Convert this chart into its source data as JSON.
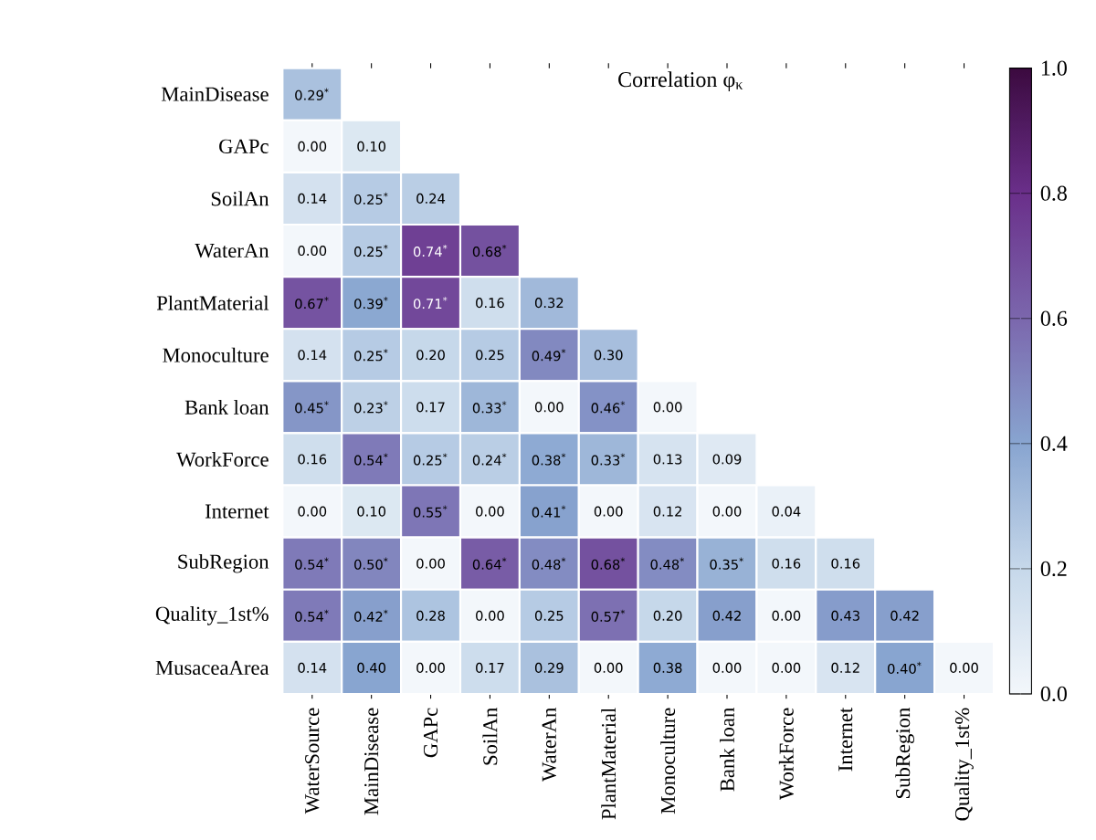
{
  "chart_data": {
    "type": "heatmap",
    "title": "Correlation φ$_{κ}$",
    "categories": [
      "WaterSource",
      "MainDisease",
      "GAPc",
      "SoilAn",
      "WaterAn",
      "PlantMaterial",
      "Monoculture",
      "Bank loan",
      "WorkForce",
      "Internet",
      "SubRegion",
      "Quality_1st%"
    ],
    "y_categories": [
      "MainDisease",
      "GAPc",
      "SoilAn",
      "WaterAn",
      "PlantMaterial",
      "Monoculture",
      "Bank loan",
      "WorkForce",
      "Internet",
      "SubRegion",
      "Quality_1st%",
      "MusaceaArea"
    ],
    "cells": [
      [
        0.29,
        null,
        null,
        null,
        null,
        null,
        null,
        null,
        null,
        null,
        null,
        null
      ],
      [
        0.0,
        0.1,
        null,
        null,
        null,
        null,
        null,
        null,
        null,
        null,
        null,
        null
      ],
      [
        0.14,
        0.25,
        0.24,
        null,
        null,
        null,
        null,
        null,
        null,
        null,
        null,
        null
      ],
      [
        0.0,
        0.25,
        0.74,
        0.68,
        null,
        null,
        null,
        null,
        null,
        null,
        null,
        null
      ],
      [
        0.67,
        0.39,
        0.71,
        0.16,
        0.32,
        null,
        null,
        null,
        null,
        null,
        null,
        null
      ],
      [
        0.14,
        0.25,
        0.2,
        0.25,
        0.49,
        0.3,
        null,
        null,
        null,
        null,
        null,
        null
      ],
      [
        0.45,
        0.23,
        0.17,
        0.33,
        0.0,
        0.46,
        0.0,
        null,
        null,
        null,
        null,
        null
      ],
      [
        0.16,
        0.54,
        0.25,
        0.24,
        0.38,
        0.33,
        0.13,
        0.09,
        null,
        null,
        null,
        null
      ],
      [
        0.0,
        0.1,
        0.55,
        0.0,
        0.41,
        0.0,
        0.12,
        0.0,
        0.04,
        null,
        null,
        null
      ],
      [
        0.54,
        0.5,
        0.0,
        0.64,
        0.48,
        0.68,
        0.48,
        0.35,
        0.16,
        0.16,
        null,
        null
      ],
      [
        0.54,
        0.42,
        0.28,
        0.0,
        0.25,
        0.57,
        0.2,
        0.42,
        0.0,
        0.43,
        0.42,
        null
      ],
      [
        0.14,
        0.4,
        0.0,
        0.17,
        0.29,
        0.0,
        0.38,
        0.0,
        0.0,
        0.12,
        0.4,
        0.0
      ]
    ],
    "cell_labels": [
      [
        "0.29$^{*}$",
        null,
        null,
        null,
        null,
        null,
        null,
        null,
        null,
        null,
        null,
        null
      ],
      [
        "0.00",
        "0.10",
        null,
        null,
        null,
        null,
        null,
        null,
        null,
        null,
        null,
        null
      ],
      [
        "0.14",
        "0.25$^{*}$",
        "0.24",
        null,
        null,
        null,
        null,
        null,
        null,
        null,
        null,
        null
      ],
      [
        "0.00",
        "0.25$^{*}$",
        "0.74$^{*}$",
        "0.68$^{*}$",
        null,
        null,
        null,
        null,
        null,
        null,
        null,
        null
      ],
      [
        "0.67$^{*}$",
        "0.39$^{*}$",
        "0.71$^{*}$",
        "0.16",
        "0.32",
        null,
        null,
        null,
        null,
        null,
        null,
        null
      ],
      [
        "0.14",
        "0.25$^{*}$",
        "0.20",
        "0.25",
        "0.49$^{*}$",
        "0.30",
        null,
        null,
        null,
        null,
        null,
        null
      ],
      [
        "0.45$^{*}$",
        "0.23$^{*}$",
        "0.17",
        "0.33$^{*}$",
        "0.00",
        "0.46$^{*}$",
        "0.00",
        null,
        null,
        null,
        null,
        null
      ],
      [
        "0.16",
        "0.54$^{*}$",
        "0.25$^{*}$",
        "0.24$^{*}$",
        "0.38$^{*}$",
        "0.33$^{*}$",
        "0.13",
        "0.09",
        null,
        null,
        null,
        null
      ],
      [
        "0.00",
        "0.10",
        "0.55$^{*}$",
        "0.00",
        "0.41$^{*}$",
        "0.00",
        "0.12",
        "0.00",
        "0.04",
        null,
        null,
        null
      ],
      [
        "0.54$^{*}$",
        "0.50$^{*}$",
        "0.00",
        "0.64$^{*}$",
        "0.48$^{*}$",
        "0.68$^{*}$",
        "0.48$^{*}$",
        "0.35$^{*}$",
        "0.16",
        "0.16",
        null,
        null
      ],
      [
        "0.54$^{*}$",
        "0.42$^{*}$",
        "0.28",
        "0.00",
        "0.25",
        "0.57$^{*}$",
        "0.20",
        "0.42",
        "0.00",
        "0.43",
        "0.42",
        null
      ],
      [
        "0.14",
        "0.40",
        "0.00",
        "0.17",
        "0.29",
        "0.00",
        "0.38",
        "0.00",
        "0.00",
        "0.12",
        "0.40$^{*}$",
        "0.00"
      ]
    ],
    "clim": [
      0,
      1
    ],
    "cticks": [
      {
        "value": 0,
        "label": "0.0"
      },
      {
        "value": 0.2,
        "label": "0.2"
      },
      {
        "value": 0.4,
        "label": "0.4"
      },
      {
        "value": 0.6,
        "label": "0.6"
      },
      {
        "value": 0.8,
        "label": "0.8"
      },
      {
        "value": 1,
        "label": "1.0"
      }
    ]
  }
}
